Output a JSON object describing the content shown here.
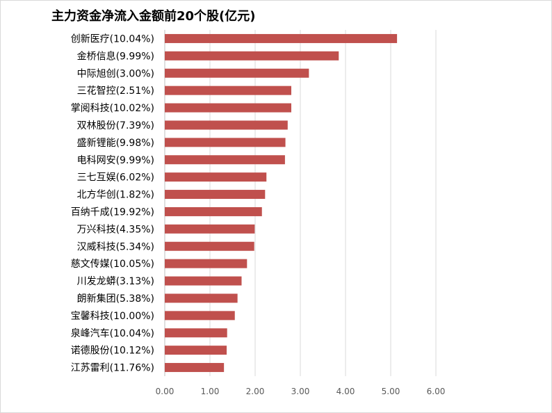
{
  "chart_data": {
    "type": "bar",
    "orientation": "horizontal",
    "title": "主力资金净流入金额前20个股(亿元)",
    "categories": [
      "创新医疗(10.04%)",
      "金桥信息(9.99%)",
      "中际旭创(3.00%)",
      "三花智控(2.51%)",
      "掌阅科技(10.02%)",
      "双林股份(7.39%)",
      "盛新锂能(9.98%)",
      "电科网安(9.99%)",
      "三七互娱(6.02%)",
      "北方华创(1.82%)",
      "百纳千成(19.92%)",
      "万兴科技(4.35%)",
      "汉威科技(5.34%)",
      "慈文传媒(10.05%)",
      "川发龙蟒(3.13%)",
      "朗新集团(5.38%)",
      "宝馨科技(10.00%)",
      "泉峰汽车(10.04%)",
      "诺德股份(10.12%)",
      "江苏雷利(11.76%)"
    ],
    "values": [
      5.14,
      3.85,
      3.19,
      2.8,
      2.8,
      2.72,
      2.67,
      2.66,
      2.25,
      2.22,
      2.15,
      1.99,
      1.98,
      1.82,
      1.7,
      1.61,
      1.55,
      1.38,
      1.37,
      1.31
    ],
    "xlim": [
      0,
      6
    ],
    "ticks": [
      "0.00",
      "1.00",
      "2.00",
      "3.00",
      "4.00",
      "5.00",
      "6.00"
    ],
    "grid": true,
    "legend": "none",
    "colors": {
      "bar": "#c0504d",
      "grid": "#d9d9d9",
      "tick_text": "#595959"
    }
  }
}
